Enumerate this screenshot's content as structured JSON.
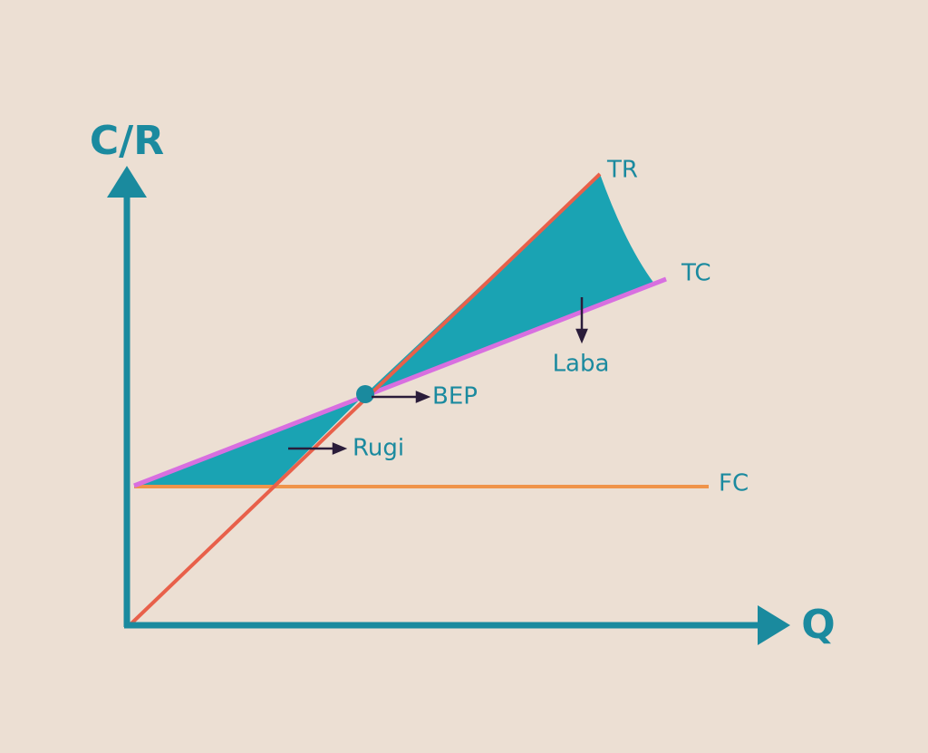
{
  "axes": {
    "y": "C/R",
    "x": "Q"
  },
  "lines": [
    {
      "label": "TR"
    },
    {
      "label": "TC"
    },
    {
      "label": "FC"
    }
  ],
  "annotations": [
    {
      "label": "BEP"
    },
    {
      "label": "Rugi"
    },
    {
      "label": "Laba"
    }
  ]
}
